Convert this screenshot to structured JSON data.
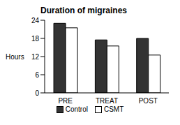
{
  "chart_data": {
    "type": "bar",
    "title": "Duration of migraines",
    "y_label": "Hours",
    "categories": [
      "PRE",
      "TREAT",
      "POST"
    ],
    "series": [
      {
        "name": "Control",
        "color": "#333333",
        "values": [
          23,
          17.5,
          18
        ]
      },
      {
        "name": "CSMT",
        "color": "#ffffff",
        "values": [
          21.5,
          15.5,
          12.5
        ]
      }
    ],
    "ylim": [
      0,
      24
    ],
    "yticks": [
      0,
      6,
      12,
      18,
      24
    ],
    "grid": false,
    "legend": "bottom"
  }
}
